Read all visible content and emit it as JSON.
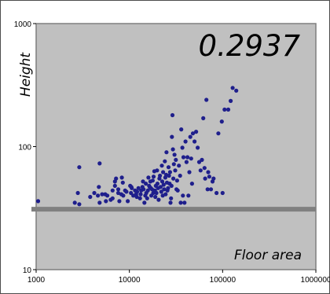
{
  "chart_data": {
    "type": "scatter",
    "title": "",
    "annotation": "0.2937",
    "xlabel": "Floor area",
    "ylabel": "Height",
    "x_scale": "log",
    "y_scale": "log",
    "xlim": [
      1000,
      1000000
    ],
    "ylim": [
      10,
      1000
    ],
    "x_ticks": [
      "1000",
      "10000",
      "100000",
      "1000000"
    ],
    "y_ticks": [
      "10",
      "100",
      "1000"
    ],
    "grid": false,
    "colors": {
      "plot_background": "#c0c0c0",
      "frame": "#7f7f7f",
      "marker": "#1f1f8c",
      "threshold_line": "#808080"
    },
    "threshold_y": 31,
    "points": [
      [
        1050,
        36
      ],
      [
        2600,
        35
      ],
      [
        2800,
        42
      ],
      [
        2900,
        34
      ],
      [
        2900,
        68
      ],
      [
        3800,
        39
      ],
      [
        4200,
        42
      ],
      [
        4600,
        40
      ],
      [
        4700,
        47
      ],
      [
        4800,
        35
      ],
      [
        4800,
        73
      ],
      [
        5100,
        41
      ],
      [
        5500,
        41
      ],
      [
        5800,
        40
      ],
      [
        5600,
        36
      ],
      [
        6300,
        37
      ],
      [
        6600,
        38
      ],
      [
        6600,
        44
      ],
      [
        7000,
        48
      ],
      [
        7000,
        52
      ],
      [
        7200,
        55
      ],
      [
        7600,
        42
      ],
      [
        7600,
        45
      ],
      [
        7800,
        36
      ],
      [
        8200,
        41
      ],
      [
        8600,
        40
      ],
      [
        8300,
        56
      ],
      [
        8500,
        51
      ],
      [
        9000,
        44
      ],
      [
        9300,
        43
      ],
      [
        9600,
        36
      ],
      [
        10200,
        48
      ],
      [
        10500,
        47
      ],
      [
        10600,
        46
      ],
      [
        10400,
        42
      ],
      [
        11000,
        40
      ],
      [
        11500,
        44
      ],
      [
        11800,
        41
      ],
      [
        12000,
        39
      ],
      [
        12100,
        43
      ],
      [
        12500,
        46
      ],
      [
        13000,
        38
      ],
      [
        13200,
        41
      ],
      [
        13400,
        44
      ],
      [
        13800,
        47
      ],
      [
        14000,
        52
      ],
      [
        14200,
        45
      ],
      [
        14500,
        35
      ],
      [
        14800,
        40
      ],
      [
        15000,
        50
      ],
      [
        15200,
        42
      ],
      [
        15500,
        38
      ],
      [
        15800,
        44
      ],
      [
        16000,
        56
      ],
      [
        16300,
        48
      ],
      [
        16500,
        47
      ],
      [
        16800,
        52
      ],
      [
        17000,
        46
      ],
      [
        17200,
        40
      ],
      [
        17500,
        45
      ],
      [
        17800,
        53
      ],
      [
        18000,
        42
      ],
      [
        18200,
        57
      ],
      [
        18500,
        63
      ],
      [
        18800,
        44
      ],
      [
        19000,
        39
      ],
      [
        19200,
        48
      ],
      [
        19500,
        42
      ],
      [
        19800,
        64
      ],
      [
        20000,
        50
      ],
      [
        20300,
        46
      ],
      [
        20600,
        37
      ],
      [
        21000,
        55
      ],
      [
        21300,
        58
      ],
      [
        21600,
        47
      ],
      [
        22000,
        43
      ],
      [
        22300,
        70
      ],
      [
        22500,
        52
      ],
      [
        22800,
        40
      ],
      [
        23000,
        62
      ],
      [
        23300,
        49
      ],
      [
        23600,
        45
      ],
      [
        24000,
        76
      ],
      [
        24300,
        56
      ],
      [
        24500,
        41
      ],
      [
        24800,
        59
      ],
      [
        25000,
        90
      ],
      [
        25300,
        51
      ],
      [
        25600,
        44
      ],
      [
        26000,
        46
      ],
      [
        26300,
        68
      ],
      [
        26600,
        58
      ],
      [
        27000,
        50
      ],
      [
        27300,
        62
      ],
      [
        27600,
        35
      ],
      [
        28000,
        38
      ],
      [
        28300,
        48
      ],
      [
        28600,
        120
      ],
      [
        29000,
        180
      ],
      [
        29300,
        95
      ],
      [
        29600,
        55
      ],
      [
        30000,
        72
      ],
      [
        30500,
        86
      ],
      [
        31000,
        64
      ],
      [
        31500,
        78
      ],
      [
        32000,
        45
      ],
      [
        32500,
        53
      ],
      [
        33000,
        44
      ],
      [
        34000,
        70
      ],
      [
        35000,
        58
      ],
      [
        35500,
        35
      ],
      [
        36000,
        138
      ],
      [
        37000,
        98
      ],
      [
        37500,
        40
      ],
      [
        38000,
        82
      ],
      [
        39000,
        35
      ],
      [
        40000,
        110
      ],
      [
        41000,
        75
      ],
      [
        42000,
        82
      ],
      [
        43000,
        40
      ],
      [
        44000,
        62
      ],
      [
        45000,
        120
      ],
      [
        46000,
        80
      ],
      [
        47000,
        50
      ],
      [
        48000,
        128
      ],
      [
        50000,
        110
      ],
      [
        52000,
        132
      ],
      [
        54000,
        98
      ],
      [
        56000,
        75
      ],
      [
        58000,
        64
      ],
      [
        60000,
        78
      ],
      [
        62000,
        170
      ],
      [
        64000,
        67
      ],
      [
        65000,
        55
      ],
      [
        67000,
        240
      ],
      [
        69000,
        45
      ],
      [
        70000,
        62
      ],
      [
        72000,
        57
      ],
      [
        75000,
        45
      ],
      [
        78000,
        52
      ],
      [
        80000,
        55
      ],
      [
        86000,
        42
      ],
      [
        90000,
        128
      ],
      [
        98000,
        160
      ],
      [
        100000,
        42
      ],
      [
        105000,
        200
      ],
      [
        115000,
        200
      ],
      [
        122000,
        235
      ],
      [
        128000,
        300
      ],
      [
        140000,
        285
      ]
    ]
  }
}
